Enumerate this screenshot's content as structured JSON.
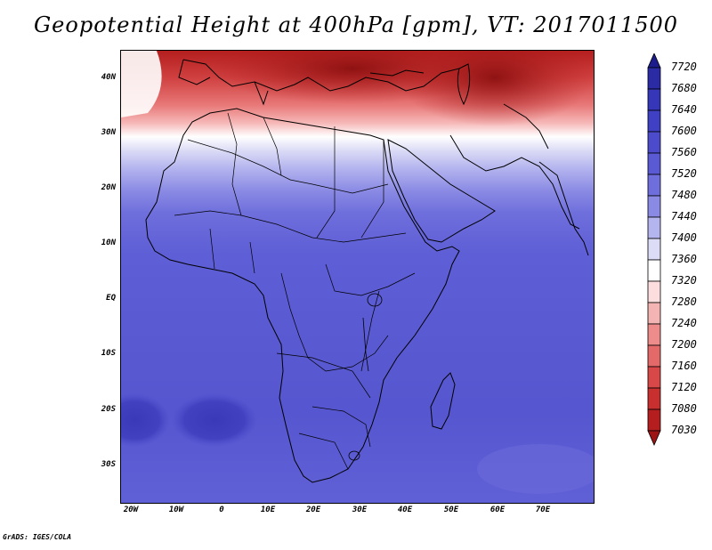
{
  "title": "Geopotential Height at 400hPa [gpm], VT: 2017011500",
  "footer": "GrADS: IGES/COLA",
  "lat_labels": [
    "40N",
    "30N",
    "20N",
    "10N",
    "EQ",
    "10S",
    "20S",
    "30S"
  ],
  "lon_labels": [
    "20W",
    "10W",
    "0",
    "10E",
    "20E",
    "30E",
    "40E",
    "50E",
    "60E",
    "70E"
  ],
  "colorbar": {
    "levels": [
      "7720",
      "7680",
      "7640",
      "7600",
      "7560",
      "7520",
      "7480",
      "7440",
      "7400",
      "7360",
      "7320",
      "7280",
      "7240",
      "7200",
      "7160",
      "7120",
      "7080",
      "7030"
    ],
    "colors": [
      "#1c1c8c",
      "#2b2ba6",
      "#3636b8",
      "#4040c4",
      "#4b4bcc",
      "#5a5ad4",
      "#6e6edc",
      "#8a8ae4",
      "#b4b4ef",
      "#dcdcf6",
      "#ffffff",
      "#fcdede",
      "#f5b4b4",
      "#ee8c8c",
      "#e46a6a",
      "#d84848",
      "#c83030",
      "#b41e1e",
      "#9c1414"
    ]
  },
  "chart_data": {
    "type": "heatmap",
    "title": "Geopotential Height at 400hPa [gpm], VT: 2017011500",
    "variable": "Geopotential Height",
    "level": "400hPa",
    "units": "gpm",
    "valid_time": "2017011500",
    "lon_range": [
      -22,
      80
    ],
    "lat_range": [
      -37,
      45
    ],
    "x_ticks": [
      "20W",
      "10W",
      "0",
      "10E",
      "20E",
      "30E",
      "40E",
      "50E",
      "60E",
      "70E"
    ],
    "y_ticks": [
      "40N",
      "30N",
      "20N",
      "10N",
      "EQ",
      "10S",
      "20S",
      "30S"
    ],
    "contour_levels": [
      7030,
      7080,
      7120,
      7160,
      7200,
      7240,
      7280,
      7320,
      7360,
      7400,
      7440,
      7480,
      7520,
      7560,
      7600,
      7640,
      7680,
      7720
    ],
    "field_summary": [
      {
        "lat": 42,
        "value": 7100
      },
      {
        "lat": 37,
        "value": 7200
      },
      {
        "lat": 33,
        "value": 7300
      },
      {
        "lat": 29,
        "value": 7380
      },
      {
        "lat": 25,
        "value": 7440
      },
      {
        "lat": 20,
        "value": 7500
      },
      {
        "lat": 10,
        "value": 7540
      },
      {
        "lat": 0,
        "value": 7560
      },
      {
        "lat": -15,
        "value": 7560
      },
      {
        "lat": -25,
        "value": 7580
      },
      {
        "lat": -35,
        "value": 7560
      }
    ]
  }
}
